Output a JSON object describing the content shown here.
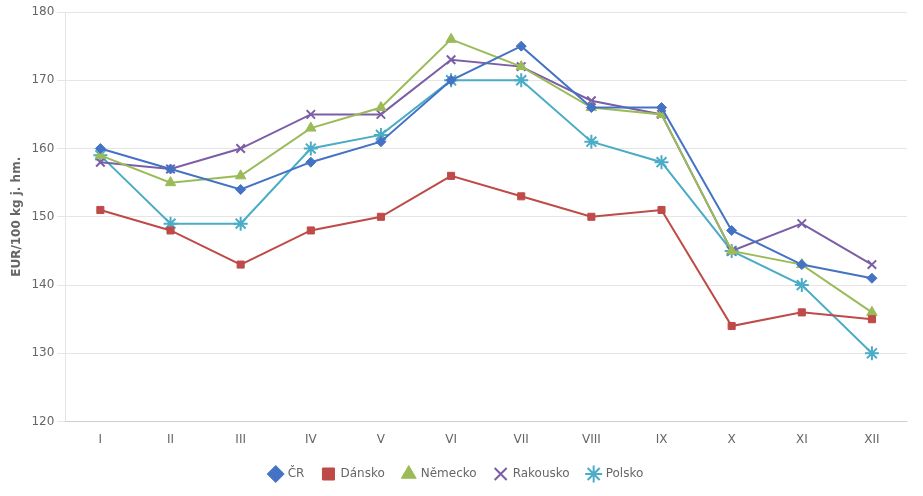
{
  "chart_data": {
    "type": "line",
    "categories": [
      "I",
      "II",
      "III",
      "IV",
      "V",
      "VI",
      "VII",
      "VIII",
      "IX",
      "X",
      "XI",
      "XII"
    ],
    "series": [
      {
        "name": "ČR",
        "color": "#4472C4",
        "marker": "diamond",
        "values": [
          160,
          157,
          154,
          158,
          161,
          170,
          175,
          166,
          166,
          148,
          143,
          141
        ]
      },
      {
        "name": "Dánsko",
        "color": "#BE4B48",
        "marker": "square",
        "values": [
          151,
          148,
          143,
          148,
          150,
          156,
          153,
          150,
          151,
          134,
          136,
          135
        ]
      },
      {
        "name": "Německo",
        "color": "#9BBB59",
        "marker": "triangle",
        "values": [
          159,
          155,
          156,
          163,
          166,
          176,
          172,
          166,
          165,
          145,
          143,
          136
        ]
      },
      {
        "name": "Rakousko",
        "color": "#7B5EA7",
        "marker": "x",
        "values": [
          158,
          157,
          160,
          165,
          165,
          173,
          172,
          167,
          165,
          145,
          149,
          143
        ]
      },
      {
        "name": "Polsko",
        "color": "#4BACC6",
        "marker": "star",
        "values": [
          159,
          149,
          149,
          160,
          162,
          170,
          170,
          161,
          158,
          145,
          140,
          130
        ]
      }
    ],
    "ylabel": "EUR/100 kg j. hm.",
    "ylim": [
      120,
      180
    ],
    "yticks": [
      120,
      130,
      140,
      150,
      160,
      170,
      180
    ],
    "grid": true,
    "legend": "bottom"
  }
}
